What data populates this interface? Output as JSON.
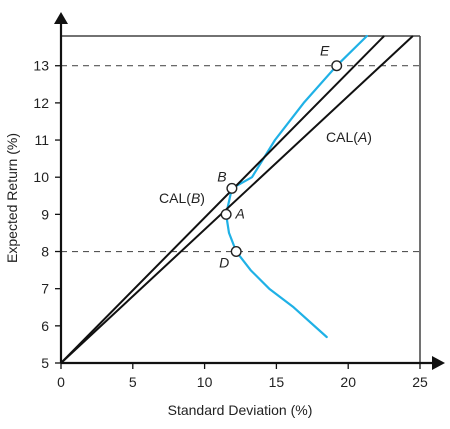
{
  "chart_data": {
    "type": "line",
    "xlabel": "Standard Deviation (%)",
    "ylabel": "Expected Return (%)",
    "xlim": [
      0,
      25
    ],
    "ylim": [
      5,
      13.8
    ],
    "x_ticks": [
      0,
      5,
      10,
      15,
      20,
      25
    ],
    "y_ticks": [
      5,
      6,
      7,
      8,
      9,
      10,
      11,
      12,
      13
    ],
    "grid": false,
    "frontier": {
      "color": "#1fb1e6",
      "points": [
        [
          21.3,
          13.8
        ],
        [
          19.2,
          13.0
        ],
        [
          16.9,
          12.0
        ],
        [
          14.9,
          11.0
        ],
        [
          13.3,
          10.0
        ],
        [
          11.9,
          9.7
        ],
        [
          11.5,
          9.0
        ],
        [
          11.7,
          8.5
        ],
        [
          12.2,
          8.0
        ],
        [
          13.2,
          7.5
        ],
        [
          14.5,
          7.0
        ],
        [
          16.2,
          6.5
        ],
        [
          18.5,
          5.7
        ]
      ]
    },
    "lines": [
      {
        "label_parts": [
          "CAL(",
          "A",
          ")"
        ],
        "from": [
          0,
          5
        ],
        "to": [
          24.5,
          13.8
        ],
        "color": "#111111"
      },
      {
        "label_parts": [
          "CAL(",
          "B",
          ")"
        ],
        "from": [
          0,
          5
        ],
        "to": [
          22.5,
          13.8
        ],
        "color": "#111111"
      }
    ],
    "reference_lines": [
      {
        "axis": "y",
        "value": 13
      },
      {
        "axis": "y",
        "value": 8
      }
    ],
    "points": [
      {
        "label": "E",
        "x": 19.2,
        "y": 13.0
      },
      {
        "label": "B",
        "x": 11.9,
        "y": 9.7
      },
      {
        "label": "A",
        "x": 11.5,
        "y": 9.0
      },
      {
        "label": "D",
        "x": 12.2,
        "y": 8.0
      }
    ]
  }
}
